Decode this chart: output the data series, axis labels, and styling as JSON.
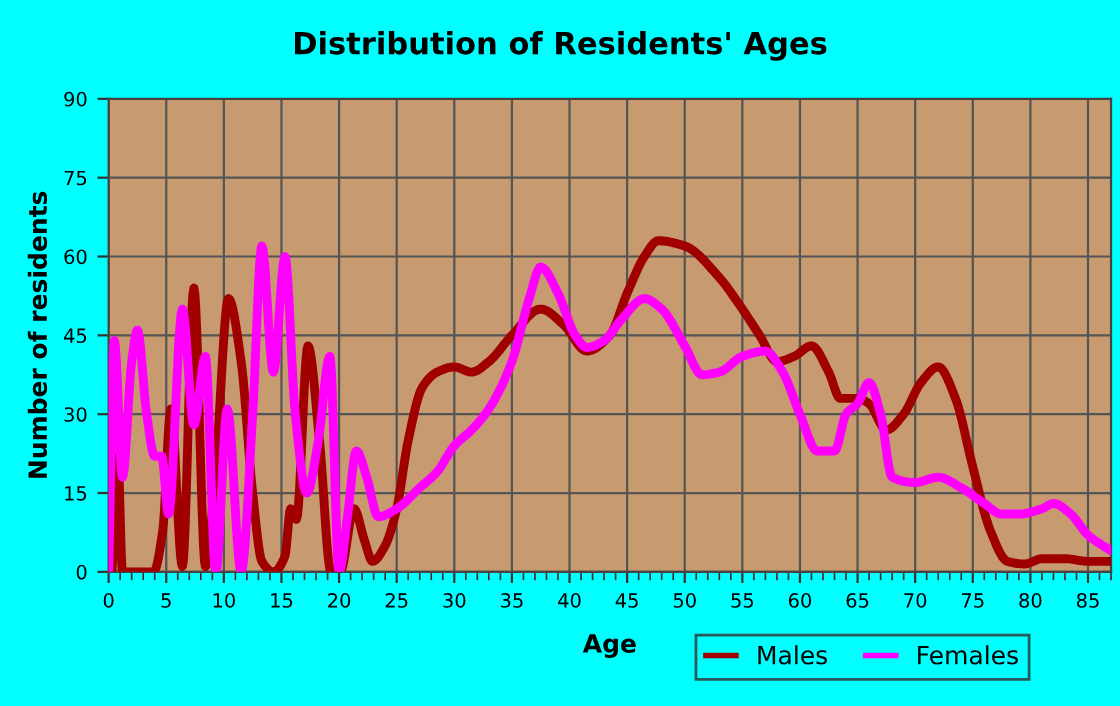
{
  "chart_data": {
    "type": "line",
    "title": "Distribution of Residents' Ages",
    "xlabel": "Age",
    "ylabel": "Number of residents",
    "xlim": [
      0,
      87
    ],
    "ylim": [
      0,
      90
    ],
    "xticks": [
      0,
      5,
      10,
      15,
      20,
      25,
      30,
      35,
      40,
      45,
      50,
      55,
      60,
      65,
      70,
      75,
      80,
      85
    ],
    "yticks": [
      0,
      15,
      30,
      45,
      60,
      75,
      90
    ],
    "grid": true,
    "legend": "bottom right",
    "marker": "none",
    "line_style": "solid",
    "series": [
      {
        "name": "Males",
        "color": "#a00000",
        "x": [
          0.3,
          0.8,
          1.2,
          2,
          3,
          3.9,
          4.7,
          5.4,
          6.4,
          7.4,
          8.4,
          9.3,
          10.4,
          11.5,
          12.5,
          13.3,
          14.3,
          15.3,
          15.8,
          16.3,
          17.3,
          18.3,
          19.3,
          20.1,
          21.3,
          22.2,
          22.9,
          24,
          25,
          26,
          27.2,
          28.5,
          30,
          31.5,
          33,
          35,
          37.5,
          39.5,
          41.5,
          43.5,
          45,
          46.5,
          47.7,
          50,
          53,
          55,
          56.5,
          58,
          59.5,
          61,
          62.5,
          63.5,
          65,
          66,
          67.5,
          69,
          70.5,
          72,
          73.5,
          75,
          76.5,
          78,
          79.5,
          81,
          83,
          85,
          87
        ],
        "values": [
          0,
          22,
          0,
          0,
          0,
          0,
          8,
          31,
          1,
          54,
          1,
          20,
          52,
          40,
          15,
          2,
          0,
          3,
          12,
          10,
          43,
          25,
          0,
          0,
          12,
          6,
          2,
          5,
          12,
          25,
          35,
          38,
          39,
          38,
          40,
          45,
          50,
          47,
          42,
          45,
          53,
          60,
          63,
          62,
          56,
          50,
          45,
          40,
          41,
          43,
          38,
          33,
          33,
          32,
          27,
          30,
          36,
          39,
          33,
          20,
          8,
          2,
          1.5,
          2.5,
          2.5,
          2,
          2
        ]
      },
      {
        "name": "Females",
        "color": "#ff00ff",
        "x": [
          0,
          0.5,
          1.2,
          2,
          2.5,
          3.3,
          4,
          4.6,
          5.2,
          6.4,
          7.4,
          8.4,
          9.3,
          10.3,
          11.5,
          12.5,
          13.3,
          14.3,
          15.3,
          16.2,
          17.2,
          18.2,
          19.2,
          20,
          20.7,
          21.5,
          22.4,
          23.4,
          25,
          27,
          28.5,
          30,
          31.5,
          33,
          35,
          36.5,
          37.5,
          39,
          40.5,
          41.5,
          43,
          44.5,
          46.5,
          48,
          50,
          51.5,
          53,
          55,
          57,
          58.5,
          60,
          61.5,
          63,
          64,
          65,
          66,
          67,
          68,
          70,
          72,
          74,
          76,
          77.5,
          79,
          81,
          82,
          83.5,
          85,
          87
        ],
        "values": [
          0,
          44,
          18,
          40,
          46,
          30,
          22,
          22,
          11,
          50,
          28,
          41,
          0,
          31,
          0,
          30,
          62,
          38,
          60,
          30,
          15,
          25,
          41,
          0,
          10,
          23,
          18,
          10.5,
          12,
          16,
          19,
          24,
          27,
          31,
          40,
          52,
          58,
          53,
          45,
          42.7,
          44,
          48,
          52,
          50,
          43,
          37.5,
          38,
          41,
          42,
          38,
          30,
          23,
          23,
          30,
          32,
          36,
          30,
          18,
          17,
          18,
          16,
          13,
          11,
          11,
          12,
          13,
          11,
          7,
          4
        ]
      }
    ]
  }
}
